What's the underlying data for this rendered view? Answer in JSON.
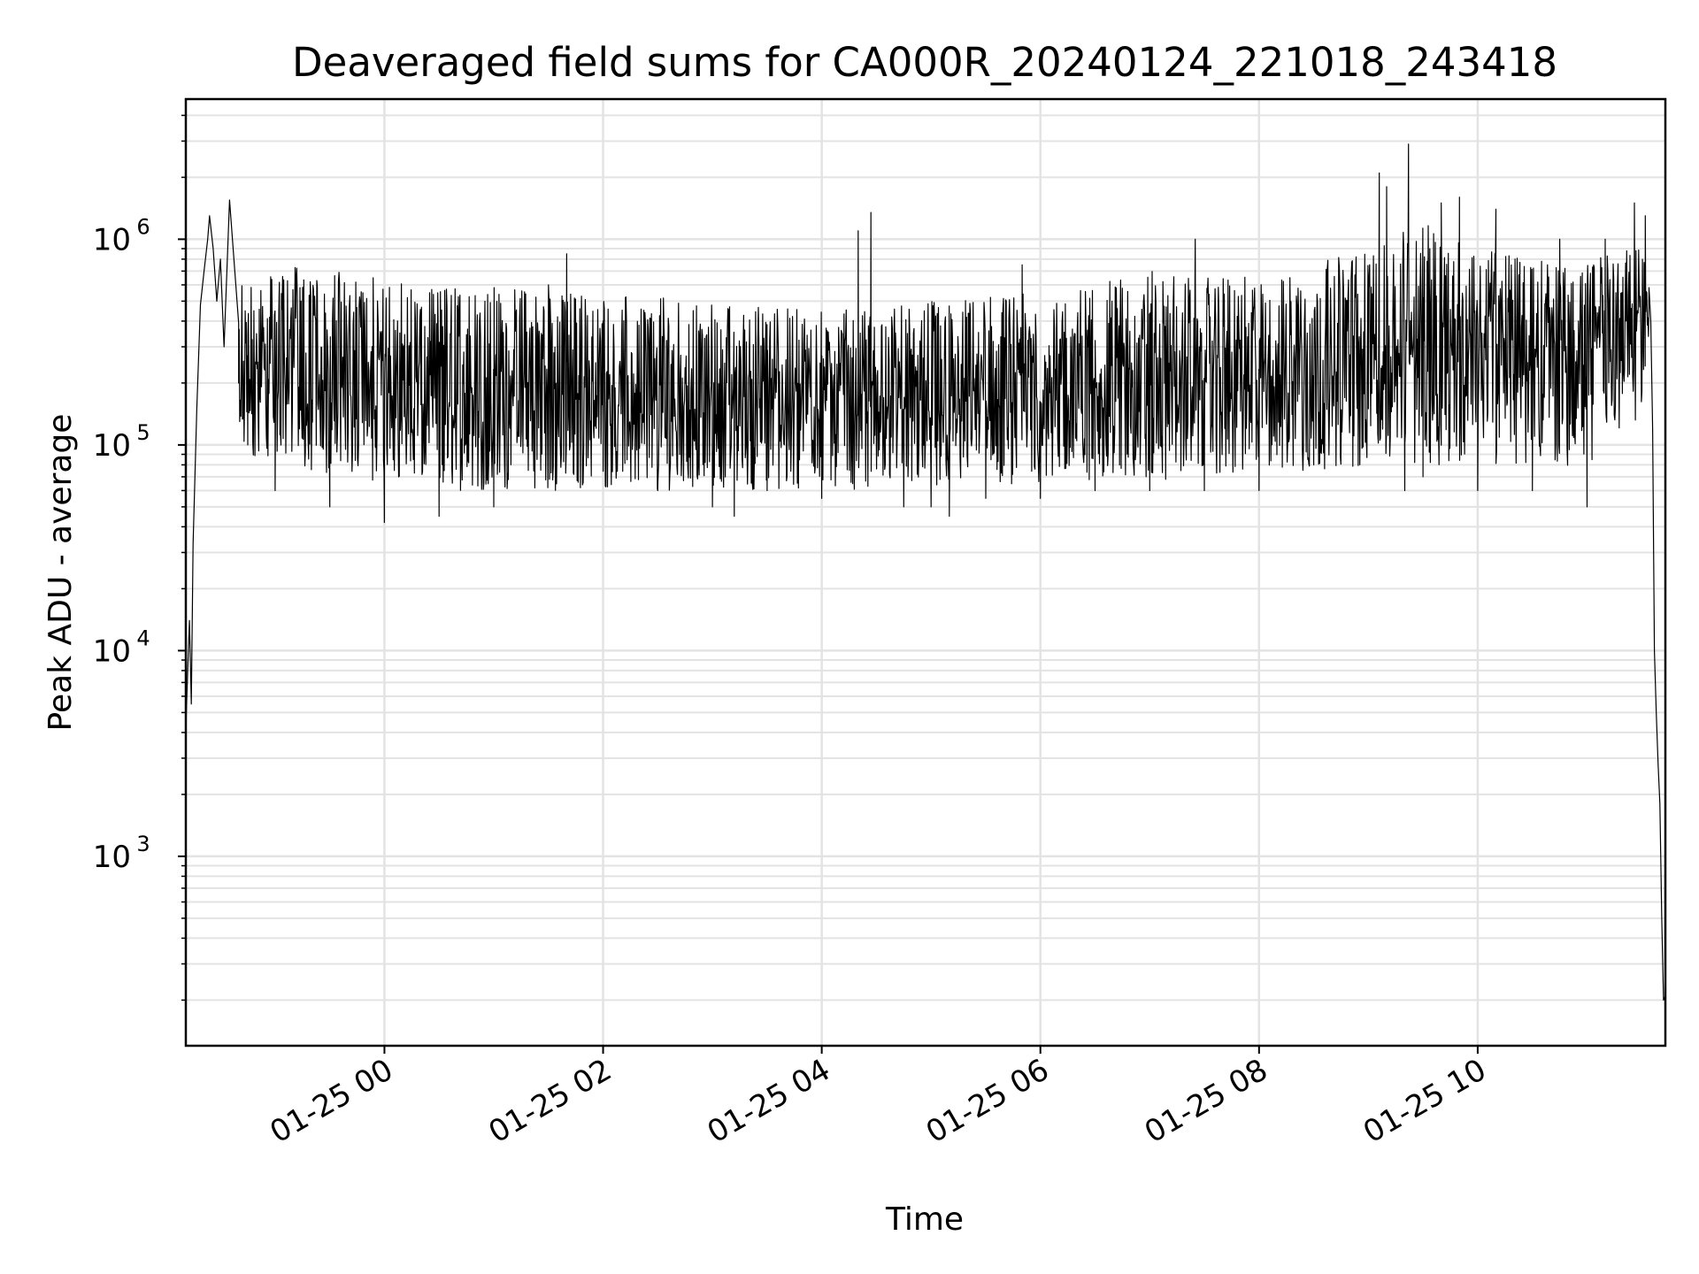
{
  "chart_data": {
    "type": "line",
    "title": "Deaveraged field sums for CA000R_20240124_221018_243418",
    "xlabel": "Time",
    "ylabel": "Peak ADU - average",
    "yscale": "log",
    "ylim": [
      120,
      4800000
    ],
    "xlim": [
      "2024-01-24 22:11",
      "2024-01-25 11:43"
    ],
    "grid": true,
    "grid_minor": true,
    "line_color": "#000000",
    "grid_color": "#e3e3e3",
    "x_ticks": [
      {
        "value": "2024-01-25 00:00",
        "label": "01-25 00"
      },
      {
        "value": "2024-01-25 02:00",
        "label": "01-25 02"
      },
      {
        "value": "2024-01-25 04:00",
        "label": "01-25 04"
      },
      {
        "value": "2024-01-25 06:00",
        "label": "01-25 06"
      },
      {
        "value": "2024-01-25 08:00",
        "label": "01-25 08"
      },
      {
        "value": "2024-01-25 10:00",
        "label": "01-25 10"
      }
    ],
    "y_ticks": [
      {
        "value": 1000,
        "base": "10",
        "exp": "3"
      },
      {
        "value": 10000,
        "base": "10",
        "exp": "4"
      },
      {
        "value": 100000,
        "base": "10",
        "exp": "5"
      },
      {
        "value": 1000000,
        "base": "10",
        "exp": "6"
      }
    ],
    "series": [
      {
        "points": [
          [
            "2024-01-24 22:11",
            4200
          ],
          [
            "2024-01-24 22:12",
            8000
          ],
          [
            "2024-01-24 22:13",
            14000
          ],
          [
            "2024-01-24 22:14",
            5500
          ],
          [
            "2024-01-24 22:15",
            33000
          ],
          [
            "2024-01-24 22:17",
            150000
          ],
          [
            "2024-01-24 22:19",
            480000
          ],
          [
            "2024-01-24 22:21",
            700000
          ],
          [
            "2024-01-24 22:23",
            1000000
          ],
          [
            "2024-01-24 22:24",
            1300000
          ],
          [
            "2024-01-24 22:26",
            900000
          ],
          [
            "2024-01-24 22:28",
            500000
          ],
          [
            "2024-01-24 22:30",
            800000
          ],
          [
            "2024-01-24 22:32",
            300000
          ],
          [
            "2024-01-24 22:35",
            1550000
          ],
          [
            "2024-01-24 22:40",
            200000
          ],
          [
            "2024-01-24 22:45",
            100000
          ],
          [
            "2024-01-24 23:00",
            60000
          ],
          [
            "2024-01-24 23:30",
            50000
          ],
          [
            "2024-01-25 00:00",
            42000
          ],
          [
            "2024-01-25 00:30",
            45000
          ],
          [
            "2024-01-25 01:00",
            50000
          ],
          [
            "2024-01-25 01:30",
            600000
          ],
          [
            "2024-01-25 01:40",
            850000
          ],
          [
            "2024-01-25 02:00",
            400000
          ],
          [
            "2024-01-25 02:30",
            60000
          ],
          [
            "2024-01-25 03:00",
            50000
          ],
          [
            "2024-01-25 03:12",
            45000
          ],
          [
            "2024-01-25 03:30",
            60000
          ],
          [
            "2024-01-25 04:00",
            55000
          ],
          [
            "2024-01-25 04:20",
            1100000
          ],
          [
            "2024-01-25 04:27",
            1350000
          ],
          [
            "2024-01-25 04:45",
            50000
          ],
          [
            "2024-01-25 05:00",
            50000
          ],
          [
            "2024-01-25 05:10",
            45000
          ],
          [
            "2024-01-25 05:30",
            55000
          ],
          [
            "2024-01-25 05:50",
            750000
          ],
          [
            "2024-01-25 06:00",
            55000
          ],
          [
            "2024-01-25 06:30",
            60000
          ],
          [
            "2024-01-25 07:00",
            60000
          ],
          [
            "2024-01-25 07:25",
            1000000
          ],
          [
            "2024-01-25 07:30",
            60000
          ],
          [
            "2024-01-25 08:00",
            60000
          ],
          [
            "2024-01-25 08:30",
            80000
          ],
          [
            "2024-01-25 09:00",
            150000
          ],
          [
            "2024-01-25 09:06",
            2100000
          ],
          [
            "2024-01-25 09:10",
            1800000
          ],
          [
            "2024-01-25 09:20",
            60000
          ],
          [
            "2024-01-25 09:22",
            2900000
          ],
          [
            "2024-01-25 09:30",
            70000
          ],
          [
            "2024-01-25 09:40",
            1500000
          ],
          [
            "2024-01-25 09:50",
            1600000
          ],
          [
            "2024-01-25 10:00",
            60000
          ],
          [
            "2024-01-25 10:10",
            1400000
          ],
          [
            "2024-01-25 10:30",
            60000
          ],
          [
            "2024-01-25 10:45",
            1000000
          ],
          [
            "2024-01-25 11:00",
            50000
          ],
          [
            "2024-01-25 11:10",
            1000000
          ],
          [
            "2024-01-25 11:26",
            1500000
          ],
          [
            "2024-01-25 11:32",
            1300000
          ],
          [
            "2024-01-25 11:35",
            400000
          ],
          [
            "2024-01-25 11:36",
            120000
          ],
          [
            "2024-01-25 11:37",
            10000
          ],
          [
            "2024-01-25 11:38",
            5000
          ],
          [
            "2024-01-25 11:39",
            2800
          ],
          [
            "2024-01-25 11:40",
            1800
          ],
          [
            "2024-01-25 11:41",
            500
          ],
          [
            "2024-01-25 11:42",
            200
          ],
          [
            "2024-01-25 11:43",
            210
          ]
        ],
        "noise_band": {
          "from": "2024-01-24 22:40",
          "to": "2024-01-25 11:34",
          "median": [
            [
              "2024-01-24 22:40",
              300000
            ],
            [
              "2024-01-25 00:00",
              180000
            ],
            [
              "2024-01-25 01:00",
              170000
            ],
            [
              "2024-01-25 02:00",
              190000
            ],
            [
              "2024-01-25 03:00",
              160000
            ],
            [
              "2024-01-25 04:00",
              170000
            ],
            [
              "2024-01-25 05:00",
              150000
            ],
            [
              "2024-01-25 06:00",
              170000
            ],
            [
              "2024-01-25 07:00",
              210000
            ],
            [
              "2024-01-25 08:00",
              200000
            ],
            [
              "2024-01-25 09:00",
              250000
            ],
            [
              "2024-01-25 09:30",
              350000
            ],
            [
              "2024-01-25 10:00",
              320000
            ],
            [
              "2024-01-25 10:30",
              280000
            ],
            [
              "2024-01-25 11:00",
              300000
            ],
            [
              "2024-01-25 11:34",
              450000
            ]
          ],
          "low": [
            [
              "2024-01-24 22:40",
              90000
            ],
            [
              "2024-01-25 00:00",
              60000
            ],
            [
              "2024-01-25 02:00",
              60000
            ],
            [
              "2024-01-25 04:00",
              60000
            ],
            [
              "2024-01-25 06:00",
              65000
            ],
            [
              "2024-01-25 08:00",
              70000
            ],
            [
              "2024-01-25 09:00",
              80000
            ],
            [
              "2024-01-25 10:00",
              80000
            ],
            [
              "2024-01-25 11:00",
              70000
            ],
            [
              "2024-01-25 11:34",
              150000
            ]
          ],
          "high": [
            [
              "2024-01-24 22:40",
              800000
            ],
            [
              "2024-01-25 00:00",
              650000
            ],
            [
              "2024-01-25 02:00",
              550000
            ],
            [
              "2024-01-25 04:00",
              450000
            ],
            [
              "2024-01-25 05:00",
              500000
            ],
            [
              "2024-01-25 06:00",
              550000
            ],
            [
              "2024-01-25 07:00",
              700000
            ],
            [
              "2024-01-25 08:00",
              650000
            ],
            [
              "2024-01-25 09:00",
              900000
            ],
            [
              "2024-01-25 09:30",
              1200000
            ],
            [
              "2024-01-25 10:00",
              900000
            ],
            [
              "2024-01-25 11:00",
              800000
            ],
            [
              "2024-01-25 11:34",
              1000000
            ]
          ]
        }
      }
    ]
  }
}
